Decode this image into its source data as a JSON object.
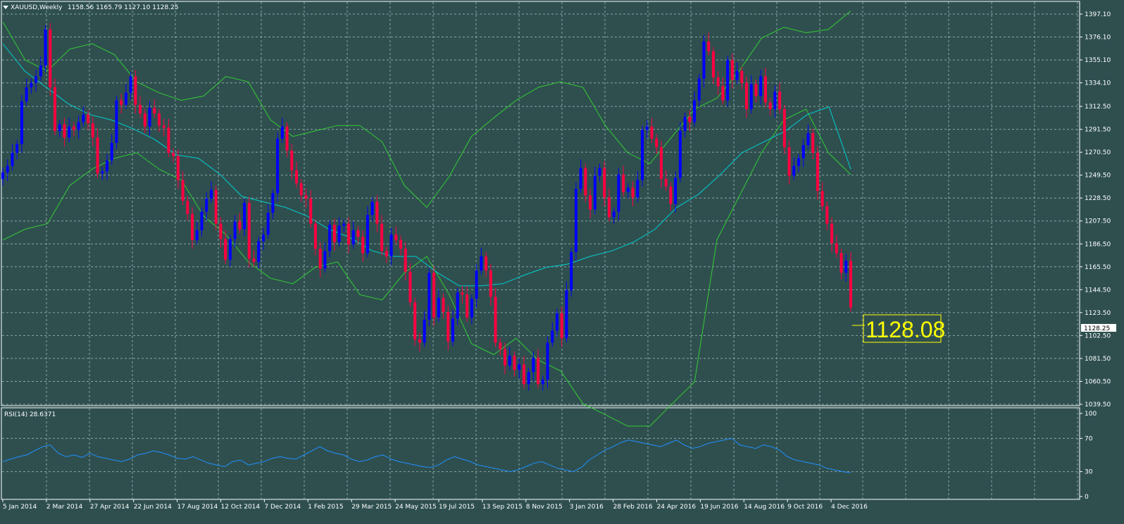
{
  "header": {
    "symbol_timeframe": "XAUUSD,Weekly",
    "ohlc": "1158.56 1165.79 1127.10 1128.25"
  },
  "price_axis": {
    "ticks": [
      "1397.10",
      "1376.10",
      "1355.10",
      "1334.10",
      "1312.50",
      "1291.50",
      "1270.50",
      "1249.50",
      "1228.50",
      "1207.50",
      "1186.50",
      "1165.50",
      "1144.50",
      "1123.50",
      "1102.50",
      "1081.50",
      "1060.50",
      "1039.50"
    ],
    "current_price_label": "1128.25"
  },
  "price_callout": "1128.08",
  "rsi": {
    "label": "RSI(14) 28.6371",
    "ticks": [
      "100",
      "70",
      "30",
      "0"
    ]
  },
  "time_axis": {
    "labels": [
      "5 Jan 2014",
      "2 Mar 2014",
      "27 Apr 2014",
      "22 Jun 2014",
      "17 Aug 2014",
      "12 Oct 2014",
      "7 Dec 2014",
      "1 Feb 2015",
      "29 Mar 2015",
      "24 May 2015",
      "19 Jul 2015",
      "13 Sep 2015",
      "8 Nov 2015",
      "3 Jan 2016",
      "28 Feb 2016",
      "24 Apr 2016",
      "19 Jun 2016",
      "14 Aug 2016",
      "9 Oct 2016",
      "4 Dec 2016"
    ]
  },
  "colors": {
    "background": "#2f4f4f",
    "bull_candle": "#0000ff",
    "bear_candle": "#ff0040",
    "bollinger": "#32cd32",
    "moving_average": "#00ced1",
    "rsi_line": "#1e90ff",
    "grid": "#8aa5a5",
    "callout": "#ffff00"
  },
  "chart_data": [
    {
      "type": "candlestick",
      "title": "XAUUSD,Weekly",
      "timeframe": "weekly",
      "ylim": [
        1039.5,
        1397.1
      ],
      "last_bar": {
        "open": 1158.56,
        "high": 1165.79,
        "low": 1127.1,
        "close": 1128.25
      },
      "closes": [
        1252,
        1258,
        1270,
        1278,
        1317,
        1330,
        1334,
        1340,
        1350,
        1383,
        1330,
        1290,
        1296,
        1284,
        1294,
        1291,
        1298,
        1305,
        1297,
        1284,
        1251,
        1253,
        1263,
        1279,
        1318,
        1314,
        1325,
        1340,
        1314,
        1306,
        1294,
        1311,
        1306,
        1295,
        1293,
        1270,
        1267,
        1245,
        1226,
        1214,
        1190,
        1199,
        1216,
        1228,
        1236,
        1205,
        1191,
        1172,
        1191,
        1207,
        1200,
        1224,
        1173,
        1170,
        1189,
        1195,
        1215,
        1233,
        1283,
        1294,
        1272,
        1254,
        1242,
        1231,
        1228,
        1205,
        1182,
        1164,
        1180,
        1204,
        1188,
        1203,
        1205,
        1186,
        1199,
        1193,
        1178,
        1213,
        1225,
        1205,
        1180,
        1175,
        1195,
        1190,
        1182,
        1161,
        1133,
        1099,
        1096,
        1117,
        1160,
        1119,
        1137,
        1124,
        1097,
        1118,
        1142,
        1140,
        1119,
        1136,
        1162,
        1175,
        1162,
        1138,
        1096,
        1090,
        1075,
        1084,
        1071,
        1076,
        1058,
        1069,
        1082,
        1058,
        1062,
        1096,
        1107,
        1123,
        1100,
        1144,
        1179,
        1237,
        1256,
        1231,
        1218,
        1249,
        1256,
        1229,
        1211,
        1216,
        1250,
        1234,
        1238,
        1229,
        1245,
        1291,
        1294,
        1283,
        1275,
        1246,
        1239,
        1223,
        1247,
        1290,
        1303,
        1298,
        1318,
        1338,
        1372,
        1363,
        1339,
        1331,
        1318,
        1355,
        1337,
        1345,
        1334,
        1310,
        1333,
        1322,
        1340,
        1316,
        1310,
        1326,
        1310,
        1275,
        1249,
        1258,
        1265,
        1277,
        1288,
        1270,
        1235,
        1221,
        1205,
        1187,
        1178,
        1160,
        1171,
        1128.25
      ],
      "bollinger_upper": [
        1390,
        1355,
        1345,
        1365,
        1370,
        1360,
        1335,
        1325,
        1318,
        1322,
        1340,
        1335,
        1300,
        1285,
        1290,
        1295,
        1295,
        1280,
        1240,
        1220,
        1248,
        1285,
        1302,
        1318,
        1330,
        1335,
        1330,
        1295,
        1270,
        1260,
        1285,
        1310,
        1320,
        1345,
        1375,
        1385,
        1380,
        1383,
        1400
      ],
      "bollinger_lower": [
        1190,
        1200,
        1205,
        1240,
        1255,
        1265,
        1270,
        1255,
        1245,
        1212,
        1195,
        1170,
        1155,
        1150,
        1165,
        1170,
        1140,
        1135,
        1160,
        1175,
        1140,
        1095,
        1085,
        1100,
        1080,
        1070,
        1040,
        1030,
        1000,
        1000,
        1040,
        1060,
        1190,
        1230,
        1270,
        1300,
        1310,
        1270,
        1250
      ],
      "moving_average": [
        1370,
        1345,
        1330,
        1315,
        1305,
        1300,
        1292,
        1282,
        1268,
        1265,
        1250,
        1230,
        1225,
        1220,
        1212,
        1200,
        1192,
        1180,
        1175,
        1175,
        1160,
        1148,
        1148,
        1150,
        1158,
        1165,
        1168,
        1175,
        1180,
        1188,
        1200,
        1220,
        1232,
        1250,
        1270,
        1280,
        1290,
        1305,
        1312,
        1255
      ]
    },
    {
      "type": "line",
      "title": "RSI(14) 28.6371",
      "ylim": [
        0,
        100
      ],
      "reference_levels": [
        70,
        30
      ],
      "values": [
        42,
        45,
        48,
        50,
        55,
        60,
        62,
        52,
        48,
        50,
        47,
        52,
        48,
        46,
        44,
        42,
        45,
        50,
        52,
        55,
        53,
        50,
        46,
        45,
        48,
        44,
        40,
        38,
        36,
        42,
        44,
        38,
        40,
        42,
        46,
        48,
        46,
        45,
        50,
        55,
        60,
        55,
        52,
        50,
        45,
        42,
        44,
        48,
        50,
        45,
        42,
        40,
        38,
        36,
        35,
        38,
        44,
        48,
        45,
        42,
        38,
        36,
        34,
        32,
        30,
        32,
        36,
        40,
        42,
        38,
        34,
        32,
        30,
        35,
        44,
        50,
        56,
        60,
        65,
        68,
        66,
        64,
        62,
        60,
        64,
        68,
        62,
        58,
        60,
        64,
        66,
        68,
        70,
        62,
        60,
        58,
        62,
        60,
        56,
        48,
        44,
        42,
        40,
        38,
        34,
        32,
        30,
        28.6371
      ]
    }
  ]
}
